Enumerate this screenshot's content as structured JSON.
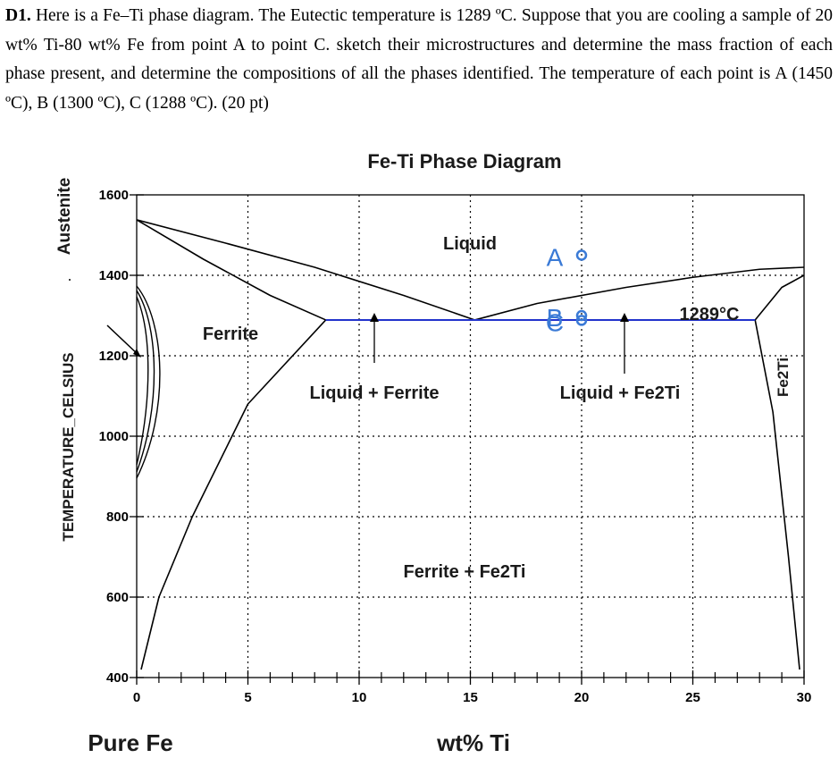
{
  "problem": {
    "label": "D1.",
    "text": "Here is a Fe–Ti phase diagram. The Eutectic temperature is 1289 ºC. Suppose that you are cooling a sample of 20 wt% Ti-80 wt% Fe from point A to point C. sketch their microstructures and determine the mass fraction of each phase present, and determine the compositions of all the phases identified. The temperature of each point is A (1450 ºC), B (1300 ºC), C (1288 ºC). (20 pt)"
  },
  "diagram": {
    "title": "Fe-Ti Phase Diagram",
    "ylabel": "TEMPERATURE_CELSIUS",
    "xlabel": "wt% Ti",
    "x_left_label": "Pure Fe",
    "austenite_label": "Austenite",
    "fe2ti_side_label": "Fe2Ti",
    "eutectic_label": "1289°C",
    "phase_labels": {
      "liquid": "Liquid",
      "ferrite": "Ferrite",
      "liquid_ferrite": "Liquid + Ferrite",
      "liquid_fe2ti": "Liquid + Fe2Ti",
      "ferrite_fe2ti": "Ferrite + Fe2Ti"
    },
    "points": [
      {
        "label": "A",
        "ti_wt_pct": 20,
        "temp_c": 1450
      },
      {
        "label": "B",
        "ti_wt_pct": 20,
        "temp_c": 1300
      },
      {
        "label": "C",
        "ti_wt_pct": 20,
        "temp_c": 1288
      }
    ],
    "point_color": "#3a7ad6",
    "eutectic_line_color": "#2233cc"
  },
  "chart_data": {
    "type": "line",
    "title": "Fe-Ti Phase Diagram",
    "xlabel": "wt% Ti",
    "ylabel": "TEMPERATURE_CELSIUS",
    "xlim": [
      0,
      30
    ],
    "ylim": [
      400,
      1600
    ],
    "x_ticks": [
      "0",
      "5",
      "10",
      "15",
      "20",
      "25",
      "30"
    ],
    "y_ticks": [
      "400",
      "600",
      "800",
      "1000",
      "1200",
      "1400",
      "1600"
    ],
    "grid": true,
    "eutectic": {
      "temp_c": 1289,
      "x_from": 8.5,
      "x_eutectic": 15.2,
      "x_to": 27.8
    },
    "series": [
      {
        "values": [
          [
            0,
            1538
          ],
          [
            4,
            1480
          ],
          [
            8,
            1420
          ],
          [
            12,
            1350
          ],
          [
            15.2,
            1289
          ]
        ]
      },
      {
        "values": [
          [
            0,
            1538
          ],
          [
            3,
            1440
          ],
          [
            6,
            1350
          ],
          [
            8.5,
            1289
          ]
        ]
      },
      {
        "values": [
          [
            15.2,
            1289
          ],
          [
            18,
            1330
          ],
          [
            22,
            1370
          ],
          [
            25,
            1395
          ],
          [
            28,
            1415
          ],
          [
            30,
            1420
          ]
        ]
      },
      {
        "values": [
          [
            8.5,
            1289
          ],
          [
            5,
            1080
          ],
          [
            2.5,
            800
          ],
          [
            1,
            600
          ],
          [
            0.2,
            420
          ]
        ]
      },
      {
        "values": [
          [
            27.8,
            1289
          ],
          [
            28.6,
            1060
          ],
          [
            29.3,
            700
          ],
          [
            29.8,
            420
          ]
        ]
      },
      {
        "values": [
          [
            27.8,
            1289
          ],
          [
            29,
            1370
          ],
          [
            30,
            1400
          ]
        ]
      }
    ]
  }
}
